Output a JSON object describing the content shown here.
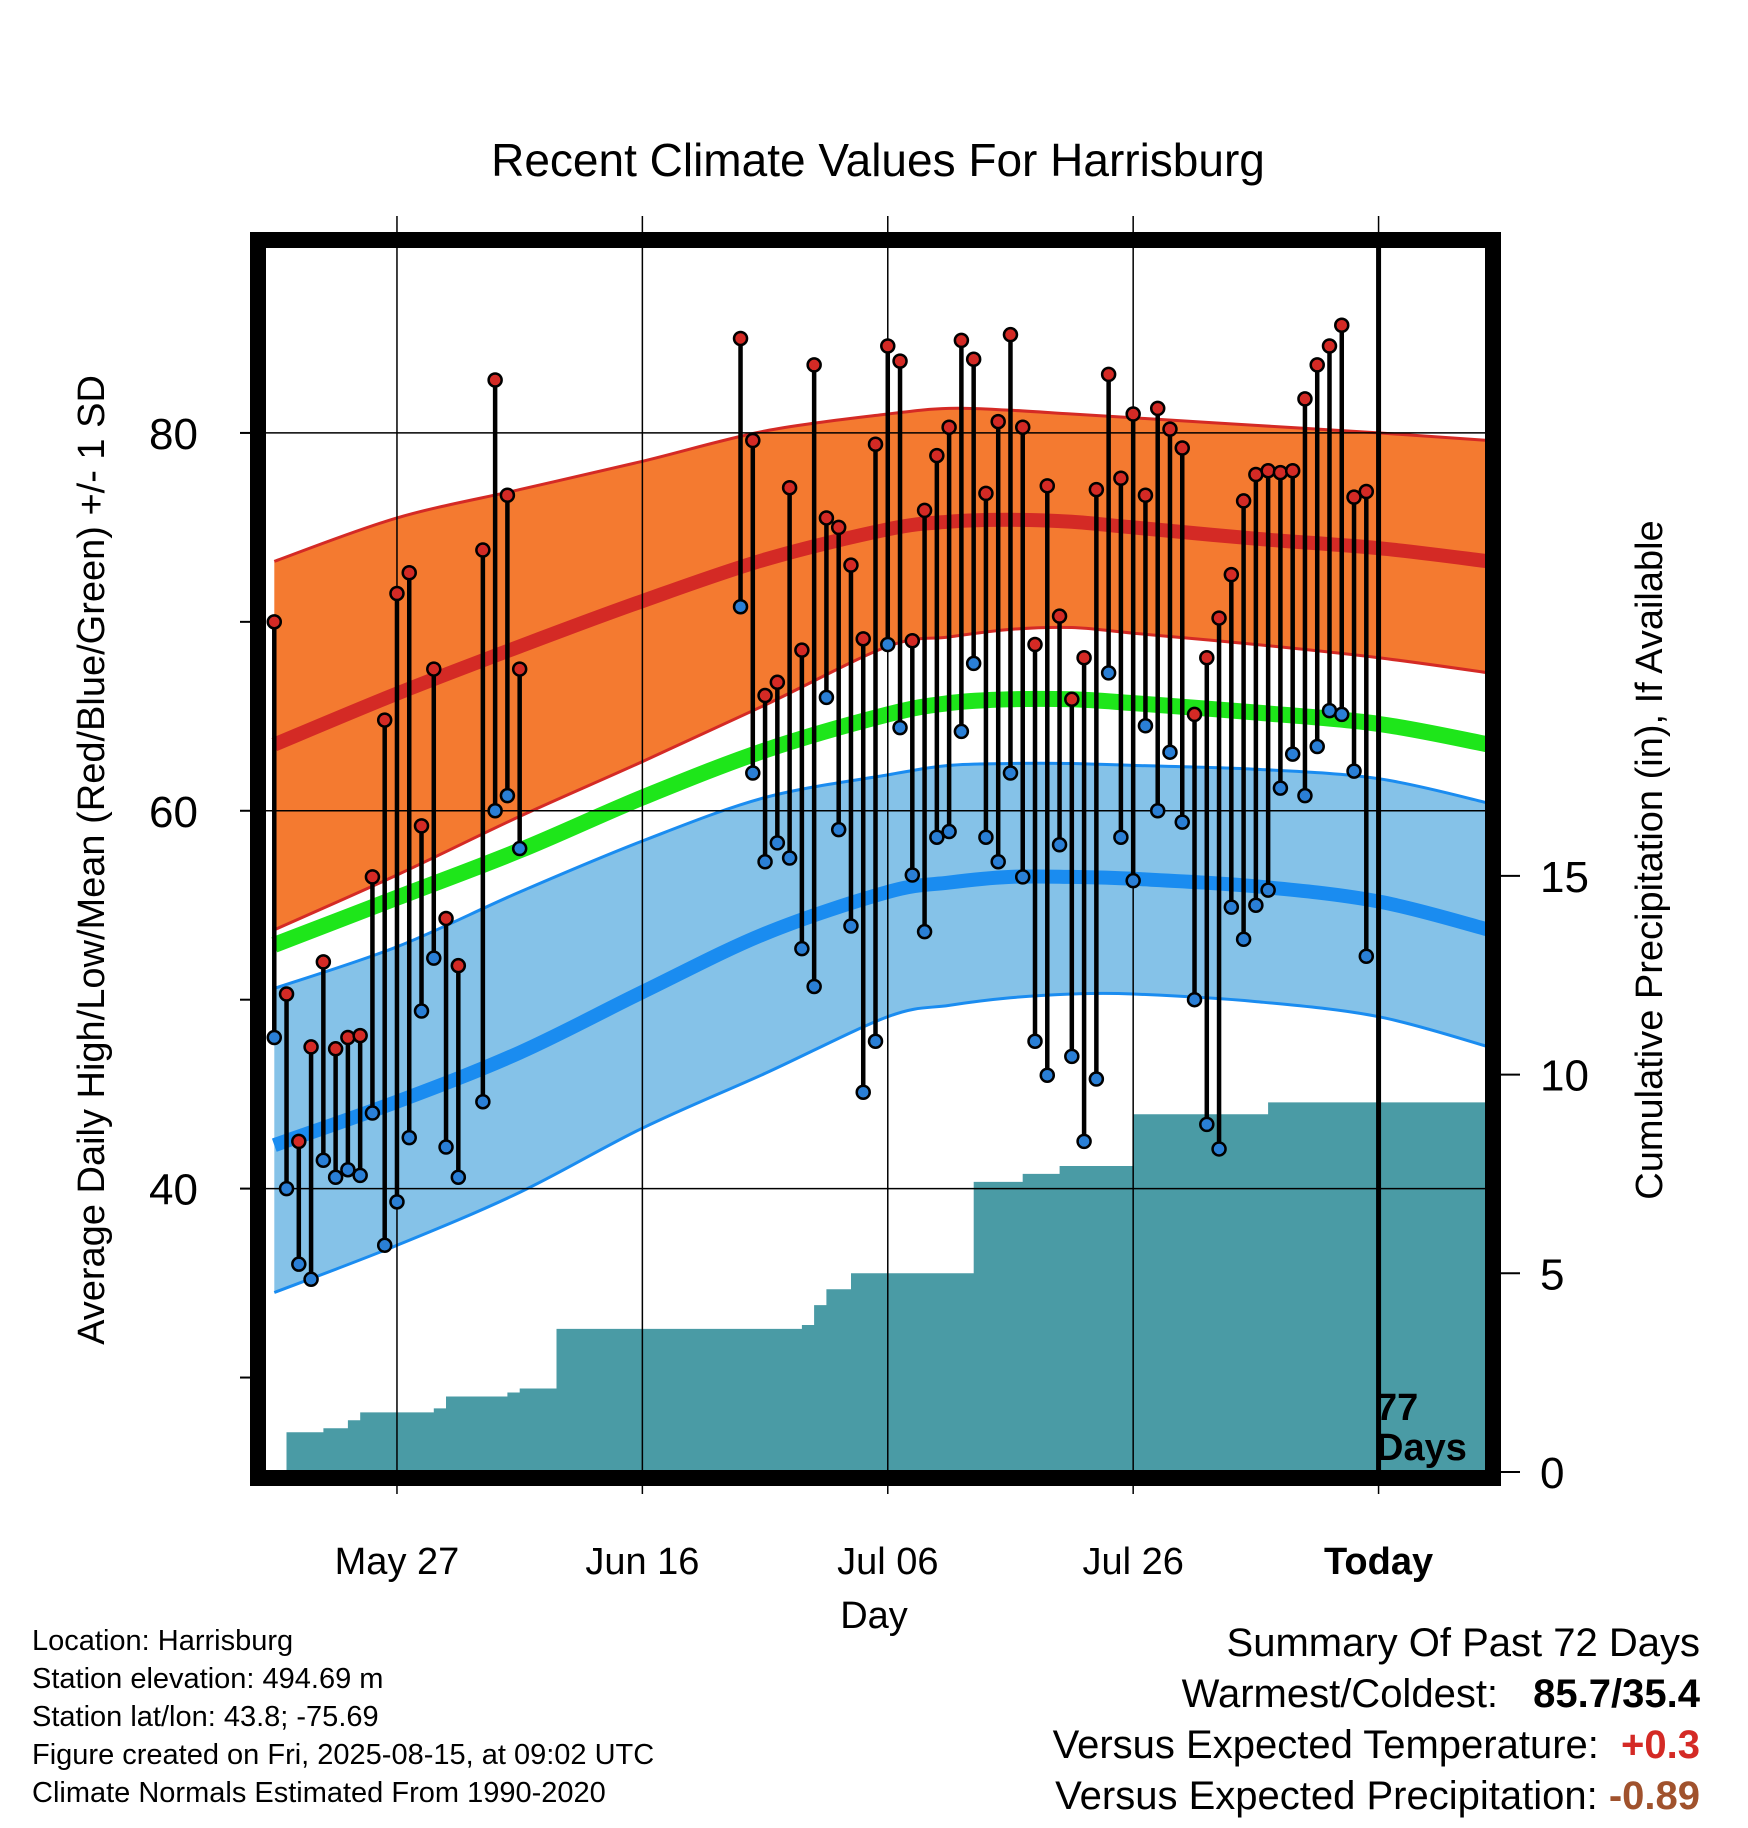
{
  "chart_data": {
    "type": "line",
    "title": "Recent Climate Values For Harrisburg",
    "xlabel": "Day",
    "ylabel_left": "Average Daily High/Low/Mean (Red/Blue/Green) +/- 1 SD",
    "ylabel_right": "Cumulative Precipitation (in), If Available",
    "x_tick_labels": [
      "May 27",
      "Jun 16",
      "Jul 06",
      "Jul 26",
      "Today"
    ],
    "x_tick_days": [
      10,
      30,
      50,
      70,
      90
    ],
    "x_range_days": [
      -1,
      99
    ],
    "ylim_temperature": [
      25,
      90
    ],
    "y_ticks_temperature": [
      40,
      60,
      80
    ],
    "ylim_precipitation": [
      0,
      30.9
    ],
    "y_ticks_precipitation": [
      0,
      5,
      10,
      15
    ],
    "today_annotation": "77\nDays",
    "today_line": "77",
    "today_line2": "Days",
    "grid": true,
    "colors": {
      "high_band": "#f47a30",
      "high_mean": "#d42a25",
      "low_band": "#85c2e8",
      "low_mean": "#1a8cf0",
      "mean": "#1ee61a",
      "precip": "#4a9ba5",
      "high_point": "#d42a25",
      "low_point": "#2a7fd6"
    },
    "normals": {
      "days": [
        0,
        10,
        20,
        30,
        40,
        50,
        55,
        60,
        65,
        70,
        80,
        90,
        99
      ],
      "high_mean": [
        63.5,
        66.2,
        68.7,
        71.1,
        73.3,
        74.9,
        75.3,
        75.4,
        75.3,
        75.0,
        74.4,
        73.9,
        73.2
      ],
      "high_upper": [
        73.2,
        75.5,
        77.0,
        78.5,
        80.1,
        81.0,
        81.3,
        81.2,
        81.0,
        80.8,
        80.4,
        80.0,
        79.6
      ],
      "high_lower": [
        53.7,
        56.6,
        59.7,
        62.6,
        65.6,
        68.7,
        69.2,
        69.6,
        69.7,
        69.4,
        68.8,
        68.1,
        67.3
      ],
      "low_mean": [
        42.3,
        44.6,
        47.2,
        50.4,
        53.5,
        55.7,
        56.2,
        56.5,
        56.5,
        56.4,
        56.0,
        55.2,
        53.7
      ],
      "low_upper": [
        50.6,
        52.8,
        55.7,
        58.4,
        60.7,
        61.9,
        62.4,
        62.5,
        62.5,
        62.4,
        62.2,
        61.7,
        60.4
      ],
      "low_lower": [
        34.5,
        37.0,
        39.8,
        43.2,
        46.1,
        49.1,
        49.7,
        50.1,
        50.3,
        50.3,
        49.9,
        49.1,
        47.5
      ],
      "mean": [
        52.9,
        55.4,
        57.9,
        60.7,
        63.2,
        65.1,
        65.7,
        65.9,
        65.9,
        65.7,
        65.2,
        64.6,
        63.5
      ]
    },
    "daily": [
      {
        "day": 0,
        "high": 70.0,
        "low": 48.0
      },
      {
        "day": 1,
        "high": 50.3,
        "low": 40.0
      },
      {
        "day": 2,
        "high": 42.5,
        "low": 36.0
      },
      {
        "day": 3,
        "high": 47.5,
        "low": 35.2
      },
      {
        "day": 4,
        "high": 52.0,
        "low": 41.5
      },
      {
        "day": 5,
        "high": 47.4,
        "low": 40.6
      },
      {
        "day": 6,
        "high": 48.0,
        "low": 41.0
      },
      {
        "day": 7,
        "high": 48.1,
        "low": 40.7
      },
      {
        "day": 8,
        "high": 56.5,
        "low": 44.0
      },
      {
        "day": 9,
        "high": 64.8,
        "low": 37.0
      },
      {
        "day": 10,
        "high": 71.5,
        "low": 39.3
      },
      {
        "day": 11,
        "high": 72.6,
        "low": 42.7
      },
      {
        "day": 12,
        "high": 59.2,
        "low": 49.4
      },
      {
        "day": 13,
        "high": 67.5,
        "low": 52.2
      },
      {
        "day": 14,
        "high": 54.3,
        "low": 42.2
      },
      {
        "day": 15,
        "high": 51.8,
        "low": 40.6
      },
      {
        "day": 17,
        "high": 73.8,
        "low": 44.6
      },
      {
        "day": 18,
        "high": 82.8,
        "low": 60.0
      },
      {
        "day": 19,
        "high": 76.7,
        "low": 60.8
      },
      {
        "day": 20,
        "high": 67.5,
        "low": 58.0
      },
      {
        "day": 38,
        "high": 85.0,
        "low": 70.8
      },
      {
        "day": 39,
        "high": 79.6,
        "low": 62.0
      },
      {
        "day": 40,
        "high": 66.1,
        "low": 57.3
      },
      {
        "day": 41,
        "high": 66.8,
        "low": 58.3
      },
      {
        "day": 42,
        "high": 77.1,
        "low": 57.5
      },
      {
        "day": 43,
        "high": 68.5,
        "low": 52.7
      },
      {
        "day": 44,
        "high": 83.6,
        "low": 50.7
      },
      {
        "day": 45,
        "high": 75.5,
        "low": 66.0
      },
      {
        "day": 46,
        "high": 75.0,
        "low": 59.0
      },
      {
        "day": 47,
        "high": 73.0,
        "low": 53.9
      },
      {
        "day": 48,
        "high": 69.1,
        "low": 45.1
      },
      {
        "day": 49,
        "high": 79.4,
        "low": 47.8
      },
      {
        "day": 50,
        "high": 84.6,
        "low": 68.8
      },
      {
        "day": 51,
        "high": 83.8,
        "low": 64.4
      },
      {
        "day": 52,
        "high": 69.0,
        "low": 56.6
      },
      {
        "day": 53,
        "high": 75.9,
        "low": 53.6
      },
      {
        "day": 54,
        "high": 78.8,
        "low": 58.6
      },
      {
        "day": 55,
        "high": 80.3,
        "low": 58.9
      },
      {
        "day": 56,
        "high": 84.9,
        "low": 64.2
      },
      {
        "day": 57,
        "high": 83.9,
        "low": 67.8
      },
      {
        "day": 58,
        "high": 76.8,
        "low": 58.6
      },
      {
        "day": 59,
        "high": 80.6,
        "low": 57.3
      },
      {
        "day": 60,
        "high": 85.2,
        "low": 62.0
      },
      {
        "day": 61,
        "high": 80.3,
        "low": 56.5
      },
      {
        "day": 62,
        "high": 68.8,
        "low": 47.8
      },
      {
        "day": 63,
        "high": 77.2,
        "low": 46.0
      },
      {
        "day": 64,
        "high": 70.3,
        "low": 58.2
      },
      {
        "day": 65,
        "high": 65.9,
        "low": 47.0
      },
      {
        "day": 66,
        "high": 68.1,
        "low": 42.5
      },
      {
        "day": 67,
        "high": 77.0,
        "low": 45.8
      },
      {
        "day": 68,
        "high": 83.1,
        "low": 67.3
      },
      {
        "day": 69,
        "high": 77.6,
        "low": 58.6
      },
      {
        "day": 70,
        "high": 81.0,
        "low": 56.3
      },
      {
        "day": 71,
        "high": 76.7,
        "low": 64.5
      },
      {
        "day": 72,
        "high": 81.3,
        "low": 60.0
      },
      {
        "day": 73,
        "high": 80.2,
        "low": 63.1
      },
      {
        "day": 74,
        "high": 79.2,
        "low": 59.4
      },
      {
        "day": 75,
        "high": 65.1,
        "low": 50.0
      },
      {
        "day": 76,
        "high": 68.1,
        "low": 43.4
      },
      {
        "day": 77,
        "high": 70.2,
        "low": 42.1
      },
      {
        "day": 78,
        "high": 72.5,
        "low": 54.9
      },
      {
        "day": 79,
        "high": 76.4,
        "low": 53.2
      },
      {
        "day": 80,
        "high": 77.8,
        "low": 55.0
      },
      {
        "day": 81,
        "high": 78.0,
        "low": 55.8
      },
      {
        "day": 82,
        "high": 77.9,
        "low": 61.2
      },
      {
        "day": 83,
        "high": 78.0,
        "low": 63.0
      },
      {
        "day": 84,
        "high": 81.8,
        "low": 60.8
      },
      {
        "day": 85,
        "high": 83.6,
        "low": 63.4
      },
      {
        "day": 86,
        "high": 84.6,
        "low": 65.3
      },
      {
        "day": 87,
        "high": 85.7,
        "low": 65.1
      },
      {
        "day": 88,
        "high": 76.6,
        "low": 62.1
      },
      {
        "day": 89,
        "high": 76.9,
        "low": 52.3
      }
    ],
    "precipitation": [
      {
        "day": 0,
        "value": 0
      },
      {
        "day": 1,
        "value": 1.0
      },
      {
        "day": 3,
        "value": 1.0
      },
      {
        "day": 4,
        "value": 1.1
      },
      {
        "day": 5,
        "value": 1.1
      },
      {
        "day": 6,
        "value": 1.3
      },
      {
        "day": 7,
        "value": 1.5
      },
      {
        "day": 13,
        "value": 1.6
      },
      {
        "day": 14,
        "value": 1.9
      },
      {
        "day": 18,
        "value": 1.9
      },
      {
        "day": 19,
        "value": 2.0
      },
      {
        "day": 20,
        "value": 2.1
      },
      {
        "day": 22,
        "value": 2.1
      },
      {
        "day": 23,
        "value": 3.6
      },
      {
        "day": 43,
        "value": 3.7
      },
      {
        "day": 44,
        "value": 4.2
      },
      {
        "day": 45,
        "value": 4.6
      },
      {
        "day": 46,
        "value": 4.6
      },
      {
        "day": 47,
        "value": 5.0
      },
      {
        "day": 56,
        "value": 5.0
      },
      {
        "day": 57,
        "value": 7.3
      },
      {
        "day": 60,
        "value": 7.3
      },
      {
        "day": 61,
        "value": 7.5
      },
      {
        "day": 63,
        "value": 7.5
      },
      {
        "day": 64,
        "value": 7.7
      },
      {
        "day": 69,
        "value": 7.7
      },
      {
        "day": 70,
        "value": 9.0
      },
      {
        "day": 74,
        "value": 9.0
      },
      {
        "day": 75,
        "value": 9.0
      },
      {
        "day": 80,
        "value": 9.0
      },
      {
        "day": 81,
        "value": 9.3
      },
      {
        "day": 99,
        "value": 9.3
      }
    ]
  },
  "info": {
    "location": "Location: Harrisburg",
    "elevation": "Station elevation: 494.69 m",
    "latlon": "Station lat/lon: 43.8; -75.69",
    "created": "Figure created on Fri, 2025-08-15, at 09:02 UTC",
    "normals": "Climate Normals Estimated From 1990-2020"
  },
  "summary": {
    "title": "Summary Of Past 72 Days",
    "warmest_coldest_label": "Warmest/Coldest:",
    "warmest_coldest_value": "85.7/35.4",
    "temp_label": "Versus Expected Temperature:",
    "temp_value": "+0.3",
    "temp_color": "#d42a25",
    "precip_label": "Versus Expected Precipitation:",
    "precip_value": "-0.89",
    "precip_color": "#a0522d"
  }
}
